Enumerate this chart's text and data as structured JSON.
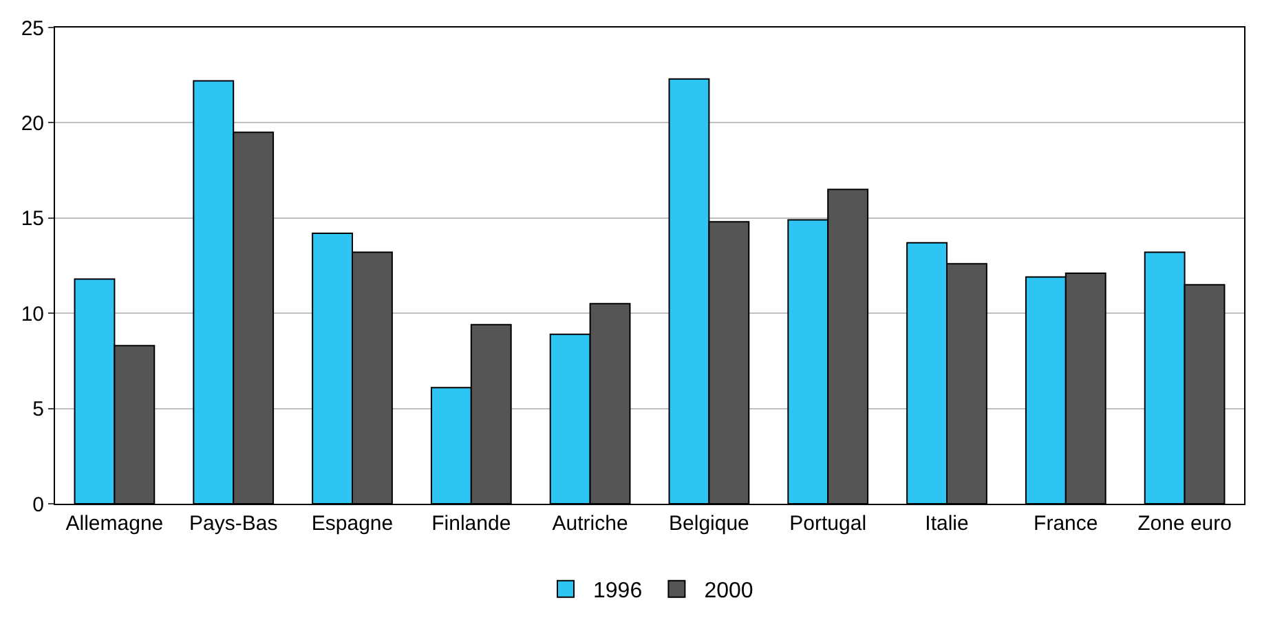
{
  "chart_data": {
    "type": "bar",
    "categories": [
      "Allemagne",
      "Pays-Bas",
      "Espagne",
      "Finlande",
      "Autriche",
      "Belgique",
      "Portugal",
      "Italie",
      "France",
      "Zone euro"
    ],
    "series": [
      {
        "name": "1996",
        "color": "#2fc5f2",
        "values": [
          11.8,
          22.2,
          14.2,
          6.1,
          8.9,
          22.3,
          14.9,
          13.7,
          11.9,
          13.2
        ]
      },
      {
        "name": "2000",
        "color": "#555555",
        "values": [
          8.3,
          19.5,
          13.2,
          9.4,
          10.5,
          14.8,
          16.5,
          12.6,
          12.1,
          11.5
        ]
      }
    ],
    "ylim": [
      0,
      25
    ],
    "yticks": [
      0,
      5,
      10,
      15,
      20,
      25
    ],
    "grid": "y",
    "legend": "bottom"
  }
}
